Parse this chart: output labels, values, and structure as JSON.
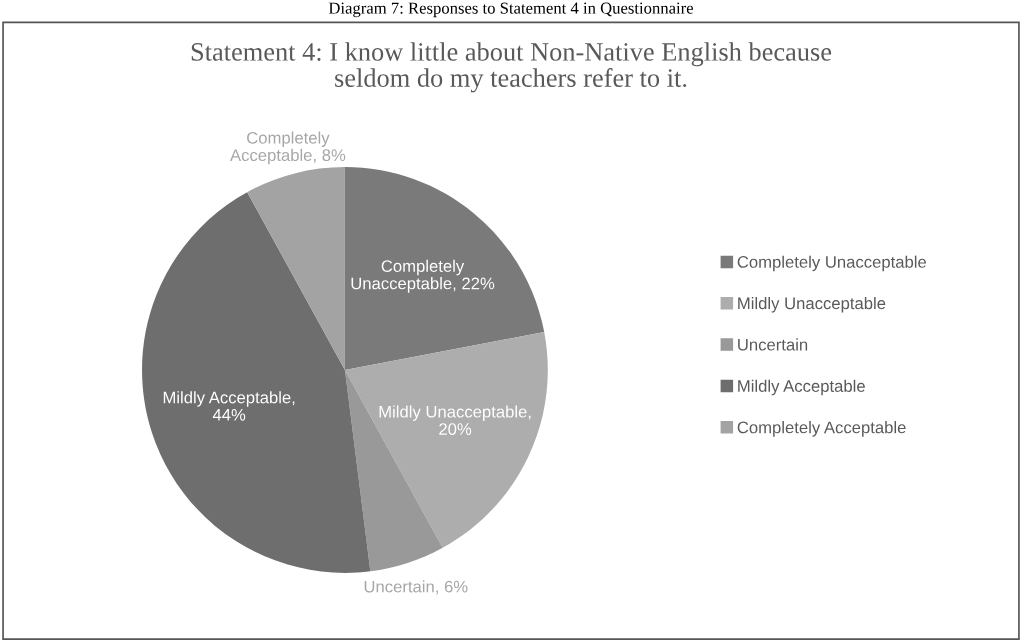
{
  "chart_data": {
    "type": "pie",
    "title": "Statement 4: I know little about Non-Native English because\nseldom do my teachers refer to it.",
    "annotations": [
      "Diagram 7: Responses to Statement 4 in Questionnaire"
    ],
    "categories": [
      "Completely Unacceptable",
      "Mildly Unacceptable",
      "Uncertain",
      "Mildly Acceptable",
      "Completely Acceptable"
    ],
    "values": [
      22,
      20,
      6,
      44,
      8
    ],
    "colors": [
      "#7a7a7a",
      "#adadad",
      "#999999",
      "#6e6e6e",
      "#a3a3a3"
    ],
    "value_labels": [
      "Completely\nUnacceptable, 22%",
      "Mildly Unacceptable,\n20%",
      "Uncertain, 6%",
      "Mildly Acceptable,\n44%",
      "Completely\nAcceptable, 8%"
    ],
    "legend": "right"
  }
}
